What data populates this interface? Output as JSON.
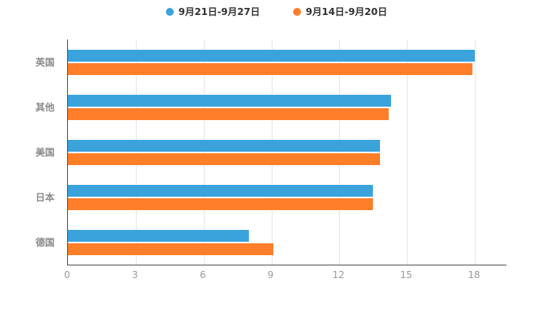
{
  "chart_data": {
    "type": "bar",
    "orientation": "horizontal",
    "title": "",
    "xlabel": "",
    "ylabel": "",
    "categories": [
      "英国",
      "其他",
      "美国",
      "日本",
      "德国"
    ],
    "series": [
      {
        "name": "9月21日-9月27日",
        "color": "#3BA3DC",
        "values": [
          18.0,
          14.3,
          13.8,
          13.5,
          8.0
        ]
      },
      {
        "name": "9月14日-9月20日",
        "color": "#FF7E29",
        "values": [
          17.9,
          14.2,
          13.8,
          13.5,
          9.1
        ]
      }
    ],
    "xlim": [
      0,
      18
    ],
    "xticks": [
      0,
      3,
      6,
      9,
      12,
      15,
      18
    ],
    "grid": true,
    "legend_position": "top"
  },
  "colors": {
    "axis_line": "#4a4a4a",
    "grid_line": "#e6e6e6",
    "tick_label": "#999999",
    "category_label": "#8a8a8a",
    "legend_text": "#333333"
  }
}
